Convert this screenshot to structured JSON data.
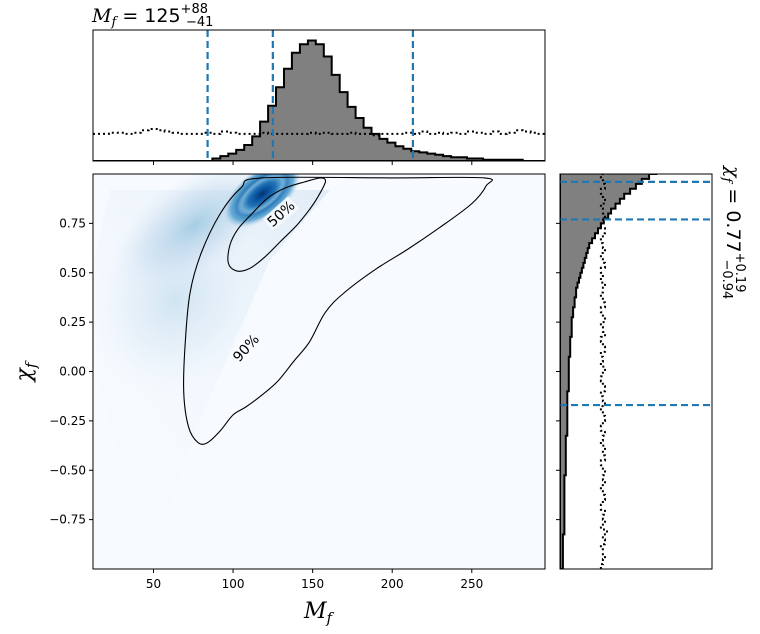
{
  "chart_data": [
    {
      "panel": "top-marginal",
      "type": "histogram",
      "title": "M_f = 125 (+88, −41)",
      "annotation": {
        "symbol": "M",
        "subscript": "f",
        "equals": " = ",
        "median": "125",
        "plus": "+88",
        "minus": "−41"
      },
      "xlim": [
        12,
        296
      ],
      "bin_width": 5,
      "bin_start": 12,
      "posterior_counts": [
        0,
        0,
        0,
        0,
        0,
        0,
        0,
        0,
        0,
        0,
        0,
        0,
        0,
        0,
        0,
        2,
        4,
        6,
        9,
        13,
        20,
        32,
        45,
        60,
        75,
        88,
        95,
        98,
        95,
        85,
        70,
        56,
        44,
        35,
        27,
        22,
        18,
        15,
        12,
        10,
        8,
        7,
        6,
        5,
        4,
        3,
        3,
        2,
        2,
        1,
        1,
        1,
        1,
        1,
        0,
        0,
        0
      ],
      "prior_counts": [
        22,
        22,
        23,
        23,
        22,
        23,
        25,
        26,
        25,
        24,
        23,
        22,
        22,
        22,
        23,
        22,
        24,
        23,
        22,
        22,
        22,
        23,
        22,
        22,
        22,
        22,
        22,
        23,
        22,
        23,
        22,
        22,
        23,
        22,
        22,
        21,
        22,
        22,
        22,
        23,
        22,
        24,
        22,
        23,
        22,
        23,
        22,
        24,
        23,
        22,
        24,
        22,
        23,
        25,
        24,
        23,
        22
      ],
      "quantile_lines": [
        84,
        125,
        213
      ],
      "colors": {
        "fill": "#808080",
        "edge": "#000000",
        "quantile": "#1f77b4"
      }
    },
    {
      "panel": "joint",
      "type": "heatmap",
      "xlabel": "M_f",
      "ylabel": "χ_f",
      "xlim": [
        12,
        296
      ],
      "ylim": [
        -1.0,
        1.0
      ],
      "xticks": [
        "50",
        "100",
        "150",
        "200",
        "250"
      ],
      "yticks": [
        "−0.75",
        "−0.50",
        "−0.25",
        "0.00",
        "0.25",
        "0.50",
        "0.75"
      ],
      "colormap": "Blues",
      "contours": [
        {
          "label": "50%",
          "points": [
            [
              97,
              0.55
            ],
            [
              98,
              0.64
            ],
            [
              103,
              0.72
            ],
            [
              112,
              0.8
            ],
            [
              122,
              0.88
            ],
            [
              133,
              0.93
            ],
            [
              145,
              0.96
            ],
            [
              155,
              0.98
            ],
            [
              158,
              0.96
            ],
            [
              153,
              0.88
            ],
            [
              148,
              0.82
            ],
            [
              140,
              0.74
            ],
            [
              130,
              0.66
            ],
            [
              120,
              0.58
            ],
            [
              110,
              0.52
            ],
            [
              102,
              0.51
            ]
          ]
        },
        {
          "label": "90%",
          "points": [
            [
              78,
              -0.36
            ],
            [
              72,
              -0.28
            ],
            [
              69,
              -0.1
            ],
            [
              70,
              0.15
            ],
            [
              73,
              0.4
            ],
            [
              80,
              0.6
            ],
            [
              92,
              0.8
            ],
            [
              105,
              0.93
            ],
            [
              118,
              0.98
            ],
            [
              200,
              0.98
            ],
            [
              258,
              0.98
            ],
            [
              259,
              0.94
            ],
            [
              250,
              0.85
            ],
            [
              230,
              0.73
            ],
            [
              210,
              0.62
            ],
            [
              190,
              0.52
            ],
            [
              170,
              0.4
            ],
            [
              158,
              0.3
            ],
            [
              148,
              0.15
            ],
            [
              138,
              0.05
            ],
            [
              128,
              -0.05
            ],
            [
              118,
              -0.12
            ],
            [
              108,
              -0.18
            ],
            [
              100,
              -0.22
            ],
            [
              92,
              -0.3
            ],
            [
              84,
              -0.36
            ]
          ]
        }
      ]
    },
    {
      "panel": "right-marginal",
      "type": "histogram",
      "orientation": "horizontal",
      "annotation": {
        "symbol": "χ",
        "subscript": "f",
        "equals": " = ",
        "median": "0.77",
        "plus": "+0.19",
        "minus": "−0.94"
      },
      "ylim": [
        -1.0,
        1.0
      ],
      "bin_width": 0.025,
      "posterior_counts": [
        2,
        2,
        2,
        2,
        2,
        2,
        2,
        3,
        3,
        3,
        3,
        3,
        3,
        3,
        3,
        3,
        3,
        3,
        3,
        4,
        4,
        4,
        4,
        4,
        4,
        4,
        4,
        5,
        5,
        5,
        5,
        5,
        5,
        5,
        5,
        5,
        6,
        6,
        6,
        6,
        6,
        6,
        6,
        7,
        7,
        7,
        7,
        8,
        8,
        8,
        8,
        9,
        9,
        10,
        10,
        11,
        11,
        12,
        13,
        14,
        15,
        16,
        17,
        18,
        19,
        20,
        22,
        24,
        26,
        28,
        30,
        33,
        35,
        38,
        41,
        44,
        48,
        52,
        56,
        61,
        66,
        72,
        78,
        85,
        92,
        98,
        100,
        97,
        90,
        80
      ],
      "prior_counts": [
        20,
        21,
        22,
        21,
        20,
        22,
        21,
        23,
        20,
        22,
        21,
        22,
        20,
        21,
        22,
        21,
        20,
        22,
        21,
        22,
        21,
        20,
        22,
        21,
        22,
        20,
        21,
        22,
        20,
        21,
        22,
        21,
        20,
        22,
        21,
        20,
        22,
        21,
        20,
        21,
        22,
        20,
        21,
        20,
        22,
        21,
        20,
        22,
        21,
        20,
        22,
        21,
        20,
        22,
        21,
        20,
        21,
        22,
        20,
        21,
        20,
        22,
        21,
        20,
        22,
        21,
        20,
        21,
        22,
        20,
        21,
        22,
        21,
        20,
        22,
        21,
        20,
        22,
        21,
        20,
        22,
        21,
        20,
        22,
        21,
        20,
        21,
        22,
        20,
        21
      ],
      "quantile_lines": [
        -0.17,
        0.77,
        0.96
      ]
    }
  ]
}
